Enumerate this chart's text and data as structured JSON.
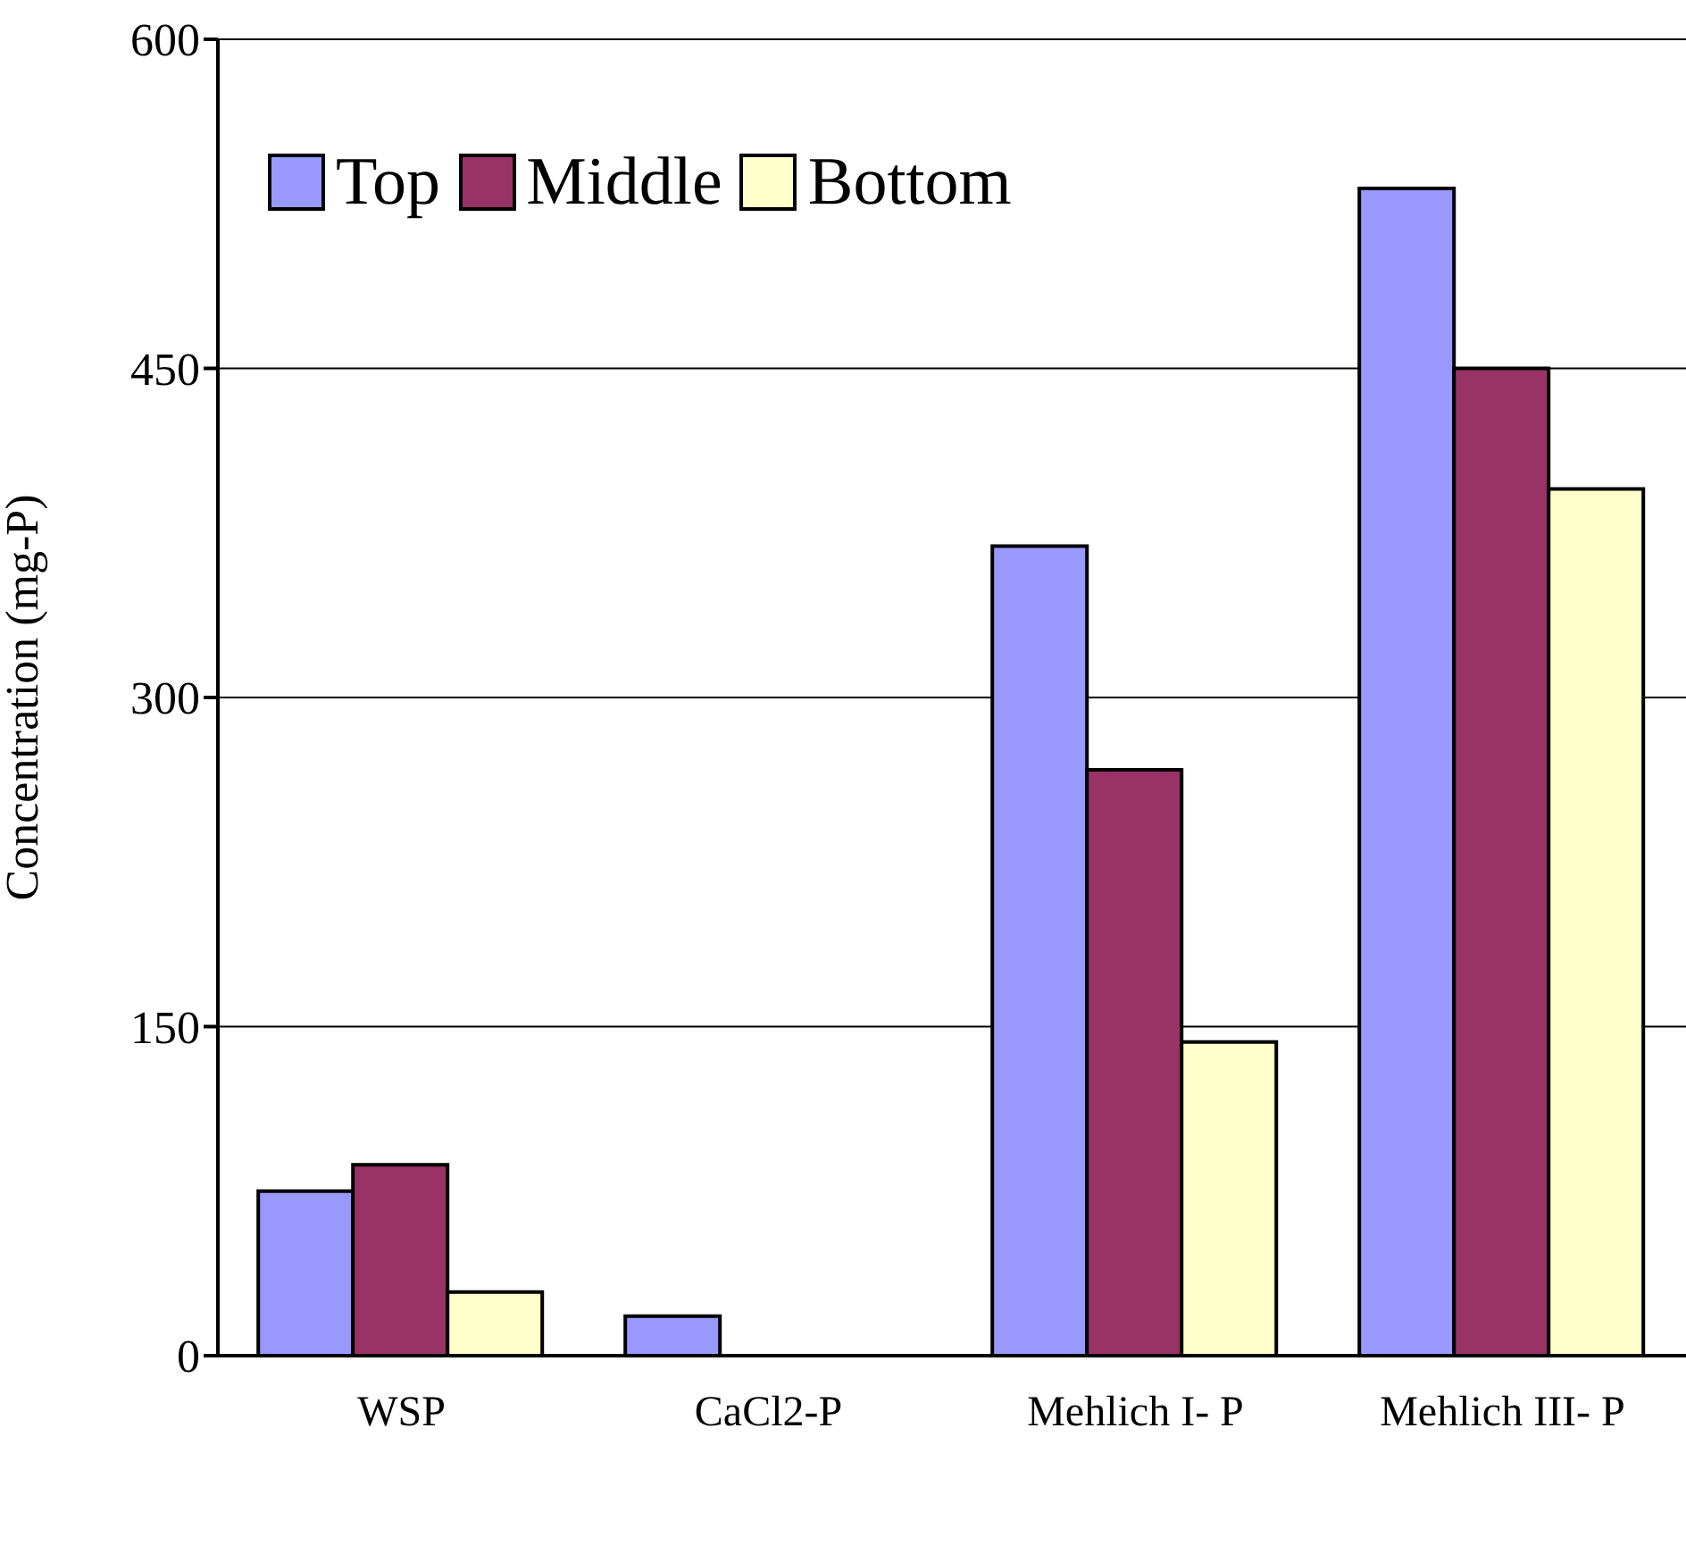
{
  "chart_data": {
    "type": "bar",
    "ylabel": "Concentration (mg-P)",
    "categories": [
      "WSP",
      "CaCl2-P",
      "Mehlich I- P",
      "Mehlich III- P"
    ],
    "series": [
      {
        "name": "Top",
        "color": "#9999ff",
        "values": [
          75,
          18,
          369,
          532
        ]
      },
      {
        "name": "Middle",
        "color": "#993366",
        "values": [
          87,
          null,
          267,
          450
        ]
      },
      {
        "name": "Bottom",
        "color": "#ffffcc",
        "values": [
          29,
          null,
          143,
          395
        ]
      }
    ],
    "ylim": [
      0,
      600
    ],
    "yticks": [
      0,
      150,
      300,
      450,
      600
    ],
    "grid": "y",
    "legend": "top left"
  }
}
